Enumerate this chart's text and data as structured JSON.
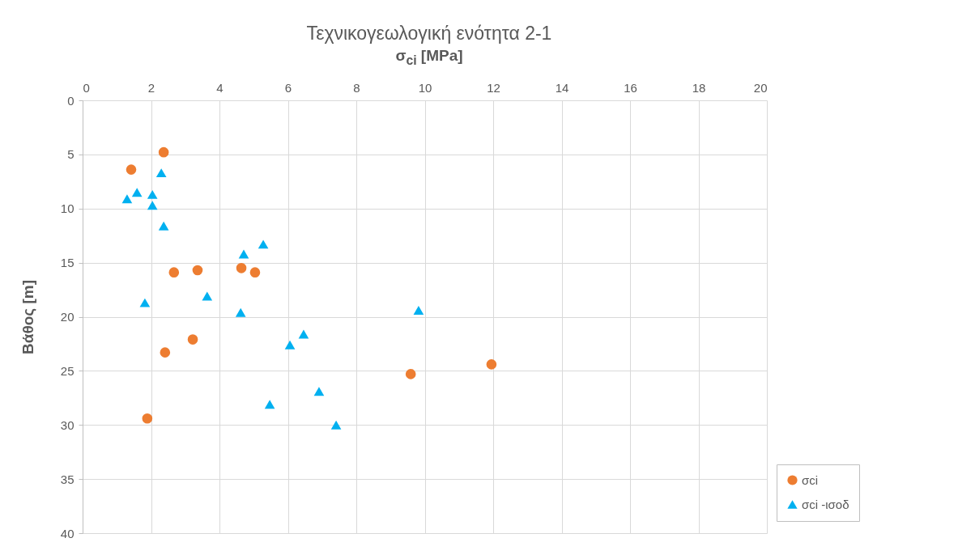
{
  "chart_data": {
    "type": "scatter",
    "title": "Τεχνικογεωλογική ενότητα 2-1",
    "xlabel": "σ$_{ci}$ [MPa]",
    "ylabel": "Βάθος [m]",
    "xlim": [
      0,
      20
    ],
    "xticks": [
      0,
      2,
      4,
      6,
      8,
      10,
      12,
      14,
      16,
      18,
      20
    ],
    "ylim": [
      40,
      0
    ],
    "yticks": [
      0,
      5,
      10,
      15,
      20,
      25,
      30,
      35,
      40
    ],
    "grid": true,
    "legend": "bottom right",
    "series": [
      {
        "name": "σci",
        "color": "#ed7d31",
        "marker": "circle",
        "x": [
          2.37,
          1.42,
          2.67,
          3.36,
          4.64,
          5.04,
          3.22,
          2.41,
          11.95,
          9.59,
          1.89
        ],
        "values": [
          4.8,
          6.4,
          15.9,
          15.7,
          15.5,
          15.9,
          22.1,
          23.3,
          24.4,
          25.3,
          29.4
        ]
      },
      {
        "name": "σci -ισοδ",
        "color": "#00b0f0",
        "marker": "triangle",
        "x": [
          2.3,
          1.59,
          2.04,
          1.3,
          2.04,
          2.37,
          5.28,
          4.71,
          1.82,
          3.64,
          4.62,
          9.82,
          6.46,
          6.06,
          6.91,
          5.47,
          7.41
        ],
        "values": [
          6.7,
          8.5,
          8.7,
          9.1,
          9.7,
          11.6,
          13.3,
          14.2,
          18.7,
          18.1,
          19.6,
          19.4,
          21.6,
          22.6,
          26.9,
          28.1,
          30.0
        ]
      }
    ]
  }
}
